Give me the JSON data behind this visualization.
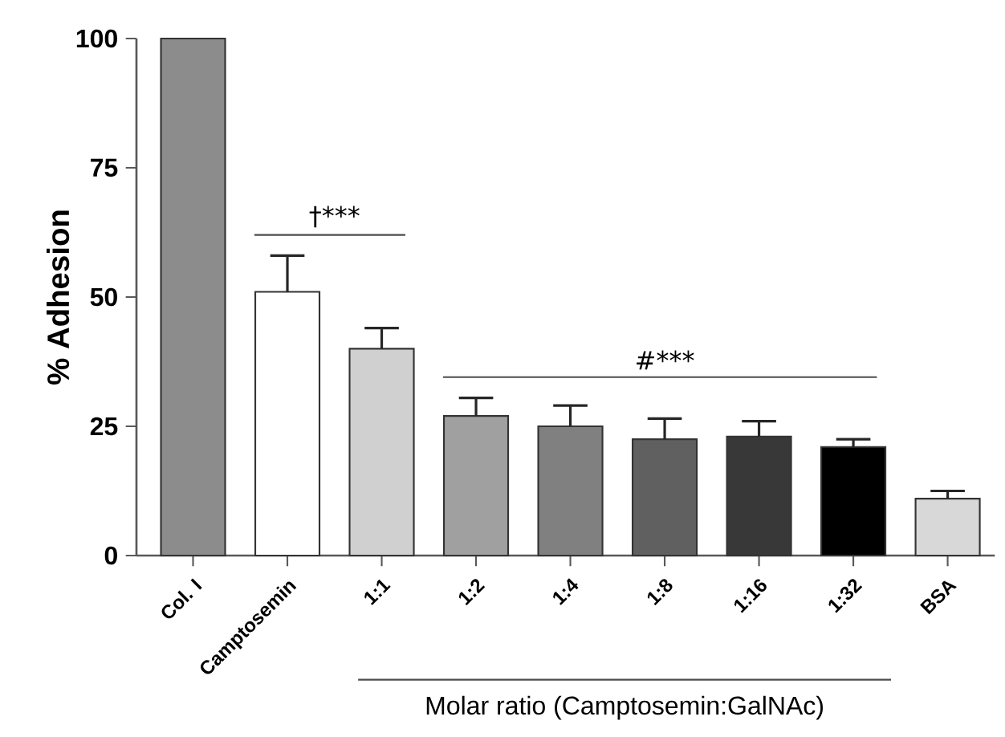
{
  "chart_data": {
    "type": "bar",
    "xlabel": "Molar ratio (Camptosemin:GalNAc)",
    "ylabel": "% Adhesion",
    "categories": [
      "Col. I",
      "Camptosemin",
      "1:1",
      "1:2",
      "1:4",
      "1:8",
      "1:16",
      "1:32",
      "BSA"
    ],
    "values": [
      100,
      51,
      40,
      27,
      25,
      22.5,
      23,
      21,
      11
    ],
    "errors": [
      null,
      7,
      4,
      3.5,
      4,
      4,
      3,
      1.5,
      1.5
    ],
    "colors": [
      "#8c8c8c",
      "#ffffff",
      "#d0d0d0",
      "#a0a0a0",
      "#808080",
      "#606060",
      "#383838",
      "#000000",
      "#d8d8d8"
    ],
    "ylim": [
      0,
      100
    ],
    "yticks": [
      0,
      25,
      50,
      75,
      100
    ],
    "annotations": [
      "†***",
      "#***"
    ]
  }
}
